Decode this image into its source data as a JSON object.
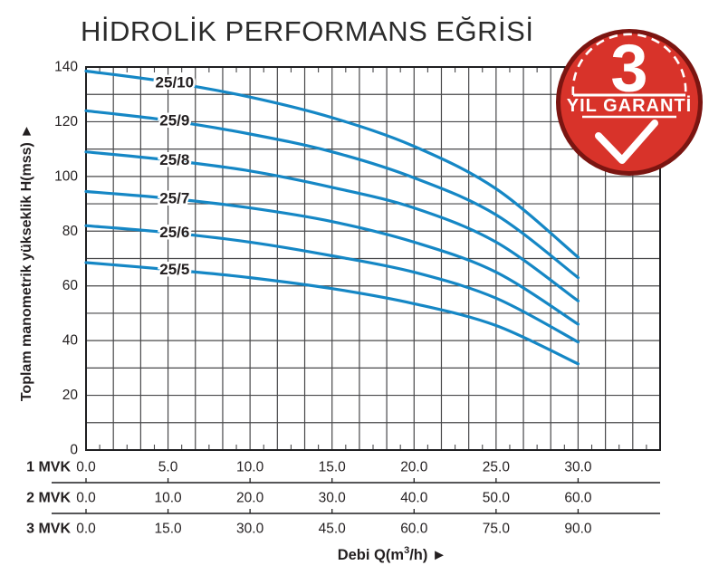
{
  "title": "HİDROLİK PERFORMANS EĞRİSİ",
  "badge": {
    "number": "3",
    "label": "YIL GARANTİ",
    "fill_color": "#d8332a",
    "ring_color": "#7b1511",
    "check_icon": "checkmark"
  },
  "chart_data": {
    "type": "line",
    "title": "HİDROLİK PERFORMANS EĞRİSİ",
    "xlabel": "Debi Q(m3/h)",
    "xlabel_parts": {
      "prefix": "Debi Q(m",
      "sup": "3",
      "suffix": "/h) ►"
    },
    "ylabel": "Toplam manometrik yükseklik H(mss)",
    "ylabel_display": "Toplam manometrik yükseklik H(mss) ►",
    "xlim": [
      0,
      35
    ],
    "ylim": [
      0,
      140
    ],
    "grid": {
      "v_lines": 21,
      "y_step": 10,
      "minor_x_halves": 42,
      "grid_on": true
    },
    "x": [
      0,
      5,
      10,
      15,
      20,
      25,
      30
    ],
    "series": [
      {
        "name": "25/10",
        "values": [
          138.5,
          134.5,
          129,
          121.5,
          111,
          95.5,
          70.5
        ]
      },
      {
        "name": "25/9",
        "values": [
          124,
          120.5,
          115.5,
          109,
          99.5,
          86,
          63
        ]
      },
      {
        "name": "25/8",
        "values": [
          109,
          106,
          102,
          96,
          88.5,
          76,
          54.5
        ]
      },
      {
        "name": "25/7",
        "values": [
          94.5,
          92,
          88.5,
          83.5,
          76,
          65,
          46
        ]
      },
      {
        "name": "25/6",
        "values": [
          82,
          79.5,
          76,
          71,
          65,
          55.5,
          39.5
        ]
      },
      {
        "name": "25/5",
        "values": [
          68.5,
          66,
          63,
          59,
          53.5,
          45.5,
          31.5
        ]
      }
    ],
    "curve_label_q": 5.4,
    "y_ticks": [
      "0",
      "20",
      "40",
      "60",
      "80",
      "100",
      "120",
      "140"
    ],
    "x_scales": [
      {
        "label": "1 MVK",
        "values": [
          "0.0",
          "5.0",
          "10.0",
          "15.0",
          "20.0",
          "25.0",
          "30.0"
        ]
      },
      {
        "label": "2 MVK",
        "values": [
          "0.0",
          "10.0",
          "20.0",
          "30.0",
          "40.0",
          "50.0",
          "60.0"
        ]
      },
      {
        "label": "3 MVK",
        "values": [
          "0.0",
          "15.0",
          "30.0",
          "45.0",
          "60.0",
          "75.0",
          "90.0"
        ]
      }
    ],
    "legend_position": "labels-on-curves",
    "colors": {
      "curve": "#1587c5",
      "grid": "#48484a",
      "axis": "#1f1f21",
      "text": "#231f20"
    }
  }
}
